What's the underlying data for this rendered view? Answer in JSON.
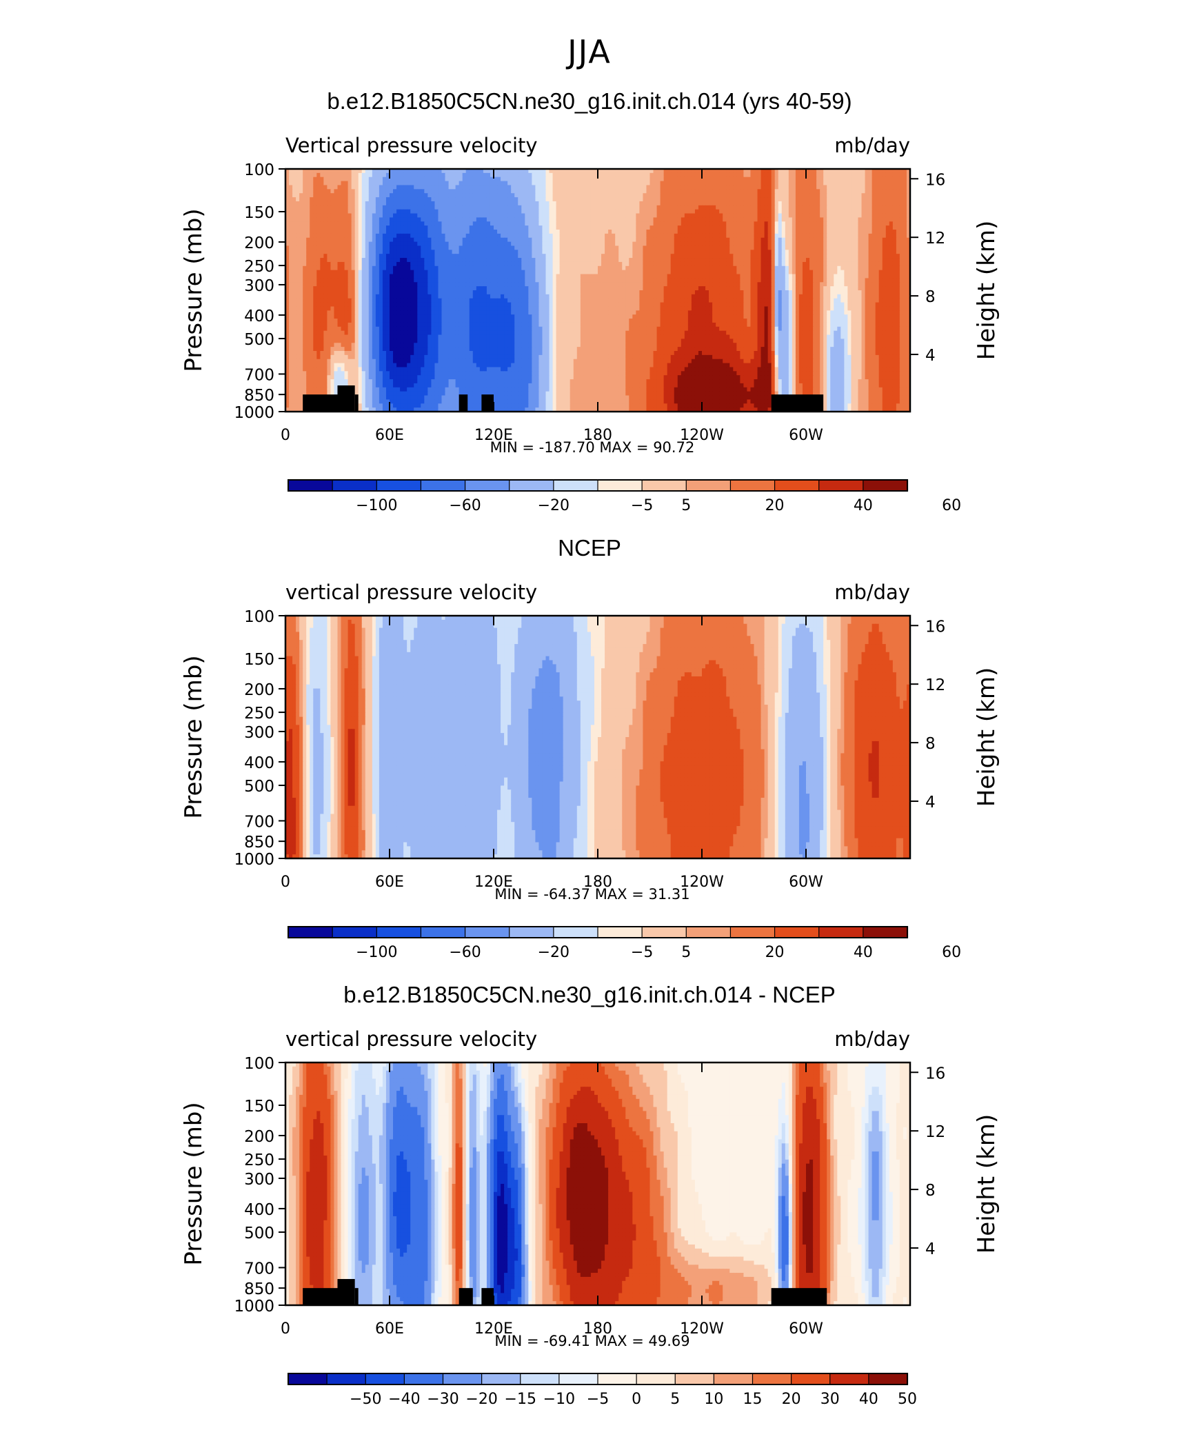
{
  "season": "JJA",
  "palettes": {
    "abs": [
      "#08089a",
      "#0a2fc8",
      "#1750e0",
      "#3c72e8",
      "#6a94ef",
      "#9cb8f4",
      "#cde0fa",
      "#fdebd9",
      "#f9c8aa",
      "#f3a078",
      "#ec7440",
      "#e34e1c",
      "#c62a10",
      "#8c1008"
    ],
    "diff": [
      "#08089a",
      "#0a2fc8",
      "#1750e0",
      "#3c72e8",
      "#6a94ef",
      "#9cb8f4",
      "#cde0fa",
      "#e8f1fc",
      "#fdf3e8",
      "#fdebd9",
      "#f9c8aa",
      "#f3a078",
      "#ec7440",
      "#e34e1c",
      "#c62a10",
      "#8c1008"
    ]
  },
  "chart_data": [
    {
      "type": "contour",
      "panel_title": "b.e12.B1850C5CN.ne30_g16.init.ch.014 (yrs 40-59)",
      "left_label": "Vertical pressure velocity",
      "right_label": "mb/day",
      "ylabel": "Pressure (mb)",
      "y2label": "Height (km)",
      "pressure_ticks": [
        "100",
        "150",
        "200",
        "250",
        "300",
        "400",
        "500",
        "700",
        "850",
        "1000"
      ],
      "height_ticks": [
        "16",
        "12",
        "8",
        "4"
      ],
      "lon_ticks": [
        "0",
        "60E",
        "120E",
        "180",
        "120W",
        "60W"
      ],
      "stats_text": "MIN = -187.70   MAX =  90.72",
      "min": -187.7,
      "max": 90.72,
      "colorbar_labels": [
        "-100",
        "-60",
        "-20",
        "-5",
        "5",
        "20",
        "40",
        "60"
      ],
      "colorbar_levels": [
        -120,
        -100,
        -80,
        -60,
        -40,
        -20,
        -10,
        -5,
        5,
        10,
        20,
        30,
        40,
        50,
        60
      ],
      "palette": "abs",
      "features": [
        {
          "lon": 20,
          "p": 400,
          "amp": 22,
          "wlon": 7,
          "wz": 0.45
        },
        {
          "lon": 36,
          "p": 500,
          "amp": 30,
          "wlon": 6,
          "wz": 0.45
        },
        {
          "lon": 32,
          "p": 780,
          "amp": -42,
          "wlon": 5,
          "wz": 0.12
        },
        {
          "lon": 65,
          "p": 290,
          "amp": -100,
          "wlon": 12,
          "wz": 0.35
        },
        {
          "lon": 65,
          "p": 650,
          "amp": -55,
          "wlon": 12,
          "wz": 0.3
        },
        {
          "lon": 85,
          "p": 400,
          "amp": -55,
          "wlon": 9,
          "wz": 0.55
        },
        {
          "lon": 108,
          "p": 450,
          "amp": -70,
          "wlon": 10,
          "wz": 0.55
        },
        {
          "lon": 128,
          "p": 500,
          "amp": -65,
          "wlon": 10,
          "wz": 0.5
        },
        {
          "lon": 142,
          "p": 600,
          "amp": -35,
          "wlon": 8,
          "wz": 0.4
        },
        {
          "lon": 175,
          "p": 300,
          "amp": 8,
          "wlon": 15,
          "wz": 0.8
        },
        {
          "lon": 240,
          "p": 450,
          "amp": 33,
          "wlon": 25,
          "wz": 0.6
        },
        {
          "lon": 250,
          "p": 870,
          "amp": 26,
          "wlon": 25,
          "wz": 0.12
        },
        {
          "lon": 288,
          "p": 650,
          "amp": -50,
          "wlon": 4,
          "wz": 0.35
        },
        {
          "lon": 284,
          "p": 300,
          "amp": -40,
          "wlon": 2,
          "wz": 0.25
        },
        {
          "lon": 278,
          "p": 400,
          "amp": 30,
          "wlon": 5,
          "wz": 0.6
        },
        {
          "lon": 300,
          "p": 400,
          "amp": 22,
          "wlon": 8,
          "wz": 0.6
        },
        {
          "lon": 318,
          "p": 750,
          "amp": -35,
          "wlon": 5,
          "wz": 0.25
        },
        {
          "lon": 348,
          "p": 450,
          "amp": 25,
          "wlon": 10,
          "wz": 0.6
        },
        {
          "lon": 180,
          "p": 130,
          "amp": -5,
          "wlon": 60,
          "wz": 0.4
        }
      ],
      "land": [
        [
          10,
          30,
          850
        ],
        [
          30,
          40,
          780
        ],
        [
          40,
          42,
          850
        ],
        [
          100,
          105,
          850
        ],
        [
          113,
          120,
          850
        ],
        [
          280,
          310,
          850
        ]
      ]
    },
    {
      "type": "contour",
      "panel_title": "NCEP",
      "left_label": "vertical pressure velocity",
      "right_label": "mb/day",
      "ylabel": "Pressure (mb)",
      "y2label": "Height (km)",
      "pressure_ticks": [
        "100",
        "150",
        "200",
        "250",
        "300",
        "400",
        "500",
        "700",
        "850",
        "1000"
      ],
      "height_ticks": [
        "16",
        "12",
        "8",
        "4"
      ],
      "lon_ticks": [
        "0",
        "60E",
        "120E",
        "180",
        "120W",
        "60W"
      ],
      "stats_text": "MIN = -64.37   MAX =  31.31",
      "min": -64.37,
      "max": 31.31,
      "colorbar_labels": [
        "-100",
        "-60",
        "-20",
        "-5",
        "5",
        "20",
        "40",
        "60"
      ],
      "colorbar_levels": [
        -120,
        -100,
        -80,
        -60,
        -40,
        -20,
        -10,
        -5,
        5,
        10,
        20,
        30,
        40,
        50,
        60
      ],
      "palette": "abs",
      "features": [
        {
          "lon": 4,
          "p": 600,
          "amp": 28,
          "wlon": 5,
          "wz": 0.55
        },
        {
          "lon": 18,
          "p": 450,
          "amp": -24,
          "wlon": 6,
          "wz": 0.6
        },
        {
          "lon": 38,
          "p": 400,
          "amp": 32,
          "wlon": 5,
          "wz": 0.6
        },
        {
          "lon": 60,
          "p": 350,
          "amp": -36,
          "wlon": 6,
          "wz": 0.7
        },
        {
          "lon": 80,
          "p": 400,
          "amp": -30,
          "wlon": 8,
          "wz": 0.7
        },
        {
          "lon": 100,
          "p": 400,
          "amp": -35,
          "wlon": 7,
          "wz": 0.6
        },
        {
          "lon": 115,
          "p": 350,
          "amp": -30,
          "wlon": 6,
          "wz": 0.6
        },
        {
          "lon": 150,
          "p": 450,
          "amp": -48,
          "wlon": 14,
          "wz": 0.6
        },
        {
          "lon": 240,
          "p": 420,
          "amp": 30,
          "wlon": 28,
          "wz": 0.6
        },
        {
          "lon": 298,
          "p": 550,
          "amp": -46,
          "wlon": 10,
          "wz": 0.6
        },
        {
          "lon": 340,
          "p": 400,
          "amp": 30,
          "wlon": 14,
          "wz": 0.6
        },
        {
          "lon": 175,
          "p": 150,
          "amp": -6,
          "wlon": 60,
          "wz": 0.4
        }
      ],
      "land": []
    },
    {
      "type": "contour",
      "panel_title": "b.e12.B1850C5CN.ne30_g16.init.ch.014 - NCEP",
      "left_label": "vertical pressure velocity",
      "right_label": "mb/day",
      "ylabel": "Pressure (mb)",
      "y2label": "Height (km)",
      "pressure_ticks": [
        "100",
        "150",
        "200",
        "250",
        "300",
        "400",
        "500",
        "700",
        "850",
        "1000"
      ],
      "height_ticks": [
        "16",
        "12",
        "8",
        "4"
      ],
      "lon_ticks": [
        "0",
        "60E",
        "120E",
        "180",
        "120W",
        "60W"
      ],
      "stats_text": "MIN = -69.41   MAX =  49.69",
      "min": -69.41,
      "max": 49.69,
      "colorbar_labels": [
        "-50",
        "-40",
        "-30",
        "-20",
        "-15",
        "-10",
        "-5",
        "0",
        "5",
        "10",
        "15",
        "20",
        "30",
        "40",
        "50"
      ],
      "colorbar_levels": [
        -60,
        -50,
        -40,
        -30,
        -20,
        -15,
        -10,
        -5,
        0,
        5,
        10,
        15,
        20,
        30,
        40,
        50,
        60
      ],
      "palette": "diff",
      "features": [
        {
          "lon": 18,
          "p": 400,
          "amp": 38,
          "wlon": 8,
          "wz": 0.6
        },
        {
          "lon": 45,
          "p": 450,
          "amp": -22,
          "wlon": 6,
          "wz": 0.6
        },
        {
          "lon": 65,
          "p": 350,
          "amp": -40,
          "wlon": 6,
          "wz": 0.5
        },
        {
          "lon": 78,
          "p": 500,
          "amp": -35,
          "wlon": 6,
          "wz": 0.6
        },
        {
          "lon": 100,
          "p": 400,
          "amp": 25,
          "wlon": 3,
          "wz": 0.6
        },
        {
          "lon": 108,
          "p": 450,
          "amp": -25,
          "wlon": 3,
          "wz": 0.6
        },
        {
          "lon": 124,
          "p": 550,
          "amp": -64,
          "wlon": 5,
          "wz": 0.55
        },
        {
          "lon": 134,
          "p": 600,
          "amp": -40,
          "wlon": 4,
          "wz": 0.4
        },
        {
          "lon": 170,
          "p": 350,
          "amp": 44,
          "wlon": 14,
          "wz": 0.45
        },
        {
          "lon": 200,
          "p": 500,
          "amp": 28,
          "wlon": 18,
          "wz": 0.5
        },
        {
          "lon": 250,
          "p": 880,
          "amp": 18,
          "wlon": 25,
          "wz": 0.12
        },
        {
          "lon": 288,
          "p": 650,
          "amp": -45,
          "wlon": 3,
          "wz": 0.4
        },
        {
          "lon": 302,
          "p": 400,
          "amp": 44,
          "wlon": 8,
          "wz": 0.6
        },
        {
          "lon": 340,
          "p": 380,
          "amp": -22,
          "wlon": 5,
          "wz": 0.4
        },
        {
          "lon": 240,
          "p": 400,
          "amp": -4,
          "wlon": 40,
          "wz": 0.8
        }
      ],
      "land": [
        [
          10,
          30,
          850
        ],
        [
          30,
          40,
          780
        ],
        [
          40,
          42,
          850
        ],
        [
          100,
          108,
          850
        ],
        [
          113,
          120,
          850
        ],
        [
          280,
          312,
          850
        ]
      ]
    }
  ]
}
